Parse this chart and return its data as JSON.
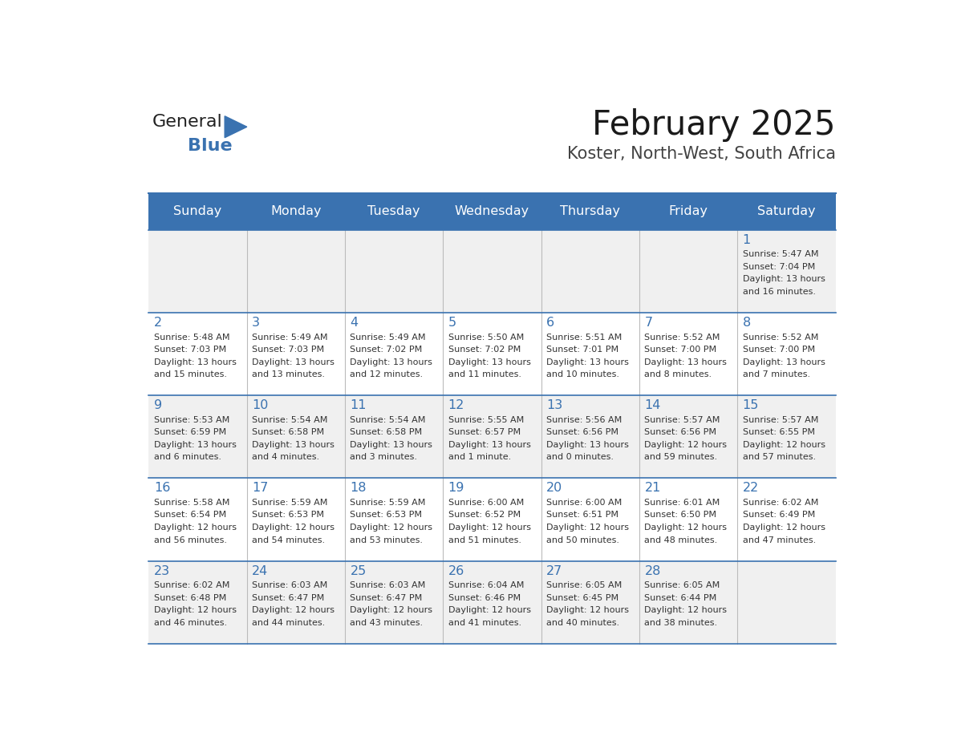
{
  "title": "February 2025",
  "subtitle": "Koster, North-West, South Africa",
  "days_of_week": [
    "Sunday",
    "Monday",
    "Tuesday",
    "Wednesday",
    "Thursday",
    "Friday",
    "Saturday"
  ],
  "header_bg": "#3a72b0",
  "header_text_color": "#ffffff",
  "cell_bg_light": "#f0f0f0",
  "cell_bg_white": "#ffffff",
  "border_color": "#3a72b0",
  "day_number_color": "#3a72b0",
  "info_text_color": "#333333",
  "calendar_data": [
    [
      null,
      null,
      null,
      null,
      null,
      null,
      {
        "day": 1,
        "sunrise": "5:47 AM",
        "sunset": "7:04 PM",
        "daylight": "13 hours and 16 minutes."
      }
    ],
    [
      {
        "day": 2,
        "sunrise": "5:48 AM",
        "sunset": "7:03 PM",
        "daylight": "13 hours and 15 minutes."
      },
      {
        "day": 3,
        "sunrise": "5:49 AM",
        "sunset": "7:03 PM",
        "daylight": "13 hours and 13 minutes."
      },
      {
        "day": 4,
        "sunrise": "5:49 AM",
        "sunset": "7:02 PM",
        "daylight": "13 hours and 12 minutes."
      },
      {
        "day": 5,
        "sunrise": "5:50 AM",
        "sunset": "7:02 PM",
        "daylight": "13 hours and 11 minutes."
      },
      {
        "day": 6,
        "sunrise": "5:51 AM",
        "sunset": "7:01 PM",
        "daylight": "13 hours and 10 minutes."
      },
      {
        "day": 7,
        "sunrise": "5:52 AM",
        "sunset": "7:00 PM",
        "daylight": "13 hours and 8 minutes."
      },
      {
        "day": 8,
        "sunrise": "5:52 AM",
        "sunset": "7:00 PM",
        "daylight": "13 hours and 7 minutes."
      }
    ],
    [
      {
        "day": 9,
        "sunrise": "5:53 AM",
        "sunset": "6:59 PM",
        "daylight": "13 hours and 6 minutes."
      },
      {
        "day": 10,
        "sunrise": "5:54 AM",
        "sunset": "6:58 PM",
        "daylight": "13 hours and 4 minutes."
      },
      {
        "day": 11,
        "sunrise": "5:54 AM",
        "sunset": "6:58 PM",
        "daylight": "13 hours and 3 minutes."
      },
      {
        "day": 12,
        "sunrise": "5:55 AM",
        "sunset": "6:57 PM",
        "daylight": "13 hours and 1 minute."
      },
      {
        "day": 13,
        "sunrise": "5:56 AM",
        "sunset": "6:56 PM",
        "daylight": "13 hours and 0 minutes."
      },
      {
        "day": 14,
        "sunrise": "5:57 AM",
        "sunset": "6:56 PM",
        "daylight": "12 hours and 59 minutes."
      },
      {
        "day": 15,
        "sunrise": "5:57 AM",
        "sunset": "6:55 PM",
        "daylight": "12 hours and 57 minutes."
      }
    ],
    [
      {
        "day": 16,
        "sunrise": "5:58 AM",
        "sunset": "6:54 PM",
        "daylight": "12 hours and 56 minutes."
      },
      {
        "day": 17,
        "sunrise": "5:59 AM",
        "sunset": "6:53 PM",
        "daylight": "12 hours and 54 minutes."
      },
      {
        "day": 18,
        "sunrise": "5:59 AM",
        "sunset": "6:53 PM",
        "daylight": "12 hours and 53 minutes."
      },
      {
        "day": 19,
        "sunrise": "6:00 AM",
        "sunset": "6:52 PM",
        "daylight": "12 hours and 51 minutes."
      },
      {
        "day": 20,
        "sunrise": "6:00 AM",
        "sunset": "6:51 PM",
        "daylight": "12 hours and 50 minutes."
      },
      {
        "day": 21,
        "sunrise": "6:01 AM",
        "sunset": "6:50 PM",
        "daylight": "12 hours and 48 minutes."
      },
      {
        "day": 22,
        "sunrise": "6:02 AM",
        "sunset": "6:49 PM",
        "daylight": "12 hours and 47 minutes."
      }
    ],
    [
      {
        "day": 23,
        "sunrise": "6:02 AM",
        "sunset": "6:48 PM",
        "daylight": "12 hours and 46 minutes."
      },
      {
        "day": 24,
        "sunrise": "6:03 AM",
        "sunset": "6:47 PM",
        "daylight": "12 hours and 44 minutes."
      },
      {
        "day": 25,
        "sunrise": "6:03 AM",
        "sunset": "6:47 PM",
        "daylight": "12 hours and 43 minutes."
      },
      {
        "day": 26,
        "sunrise": "6:04 AM",
        "sunset": "6:46 PM",
        "daylight": "12 hours and 41 minutes."
      },
      {
        "day": 27,
        "sunrise": "6:05 AM",
        "sunset": "6:45 PM",
        "daylight": "12 hours and 40 minutes."
      },
      {
        "day": 28,
        "sunrise": "6:05 AM",
        "sunset": "6:44 PM",
        "daylight": "12 hours and 38 minutes."
      },
      null
    ]
  ],
  "logo_text_general": "General",
  "logo_text_blue": "Blue",
  "logo_triangle_color": "#3a72b0"
}
